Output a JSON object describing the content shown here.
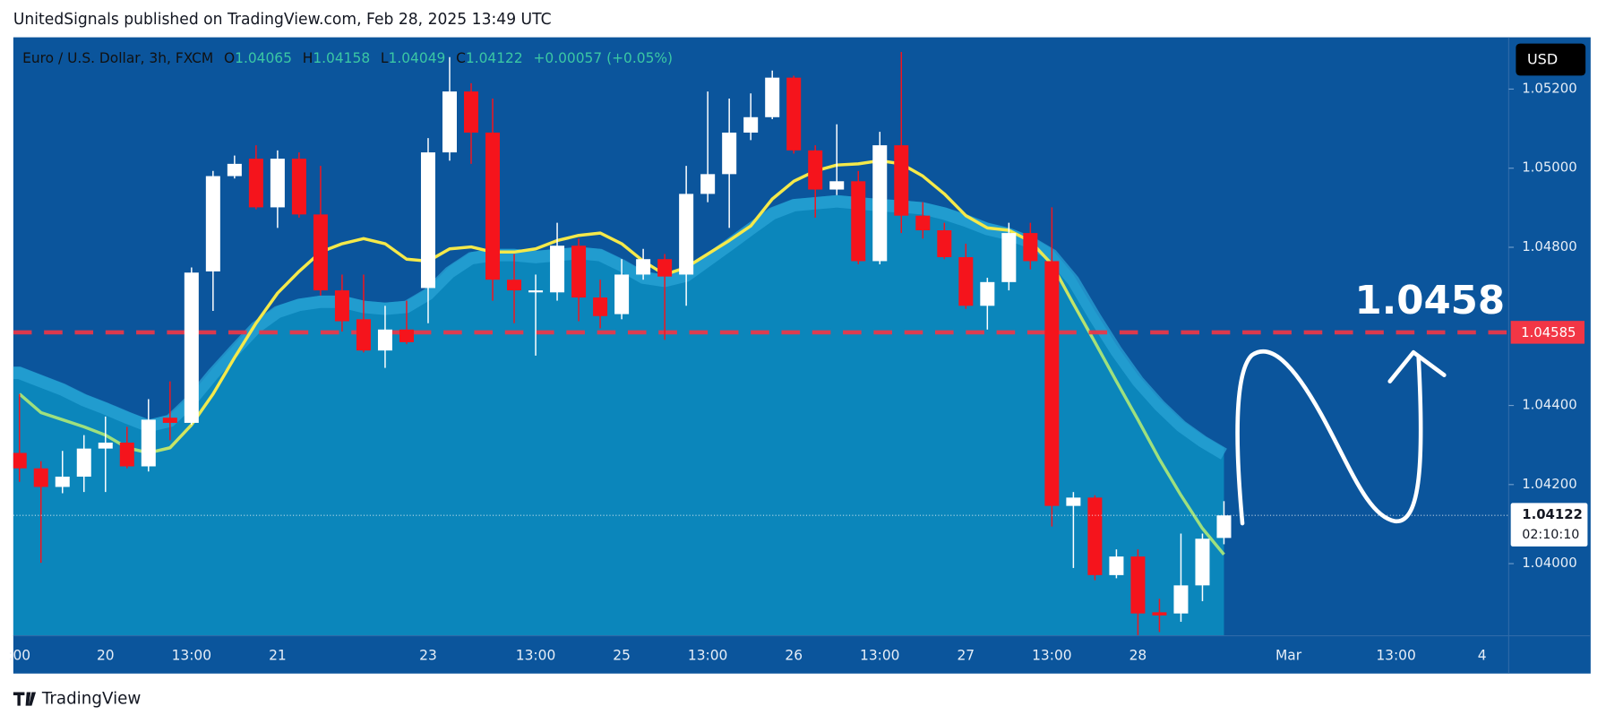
{
  "header": {
    "publisher": "UnitedSignals published on TradingView.com, Feb 28, 2025 13:49 UTC"
  },
  "chart_data": {
    "type": "candlestick",
    "title": "Euro / U.S. Dollar, 3h, FXCM",
    "legend_labels": {
      "open": "O",
      "high": "H",
      "low": "L",
      "close": "C"
    },
    "change": "+0.00057 (+0.05%)",
    "currency": "USD",
    "categories": [
      ":00",
      null,
      null,
      null,
      "20",
      null,
      null,
      null,
      "13:00",
      null,
      null,
      null,
      "21",
      null,
      null,
      null,
      null,
      null,
      null,
      "23",
      null,
      null,
      null,
      null,
      "13:00",
      null,
      null,
      null,
      "25",
      null,
      null,
      null,
      "13:00",
      null,
      null,
      null,
      "26",
      null,
      null,
      null,
      "13:00",
      null,
      null,
      null,
      "27",
      null,
      null,
      null,
      "13:00",
      null,
      null,
      null,
      "28",
      null,
      null,
      null,
      null,
      null,
      null,
      "Mar",
      null,
      null,
      null,
      null,
      "13:00",
      null,
      null,
      null,
      "4"
    ],
    "open": [
      1.0428,
      1.04241,
      1.04194,
      1.0422,
      1.04291,
      1.04306,
      1.04246,
      1.04369,
      1.04356,
      1.04739,
      1.0498,
      1.05024,
      1.04901,
      1.05024,
      1.04883,
      1.04691,
      1.04618,
      1.04539,
      1.04592,
      1.04697,
      1.0504,
      1.05194,
      1.0509,
      1.04718,
      1.04686,
      1.04686,
      1.04804,
      1.04673,
      1.04631,
      1.04731,
      1.0477,
      1.04731,
      1.04935,
      1.04985,
      1.0509,
      1.05129,
      1.05229,
      1.05045,
      1.04946,
      1.04967,
      1.04765,
      1.05058,
      1.0488,
      1.04843,
      1.04775,
      1.04652,
      1.04712,
      1.04836,
      1.04765,
      1.04146,
      1.04167,
      1.03971,
      1.04018,
      1.03877,
      1.03874,
      1.03945,
      1.04065,
      null,
      null,
      null,
      null,
      null,
      null,
      null,
      null,
      null,
      null,
      null,
      null
    ],
    "high": [
      1.04429,
      1.04259,
      1.04285,
      1.04325,
      1.04372,
      1.04346,
      1.04416,
      1.04461,
      1.04749,
      1.04993,
      1.05032,
      1.05058,
      1.05045,
      1.0504,
      1.05006,
      1.04731,
      1.04731,
      1.04652,
      1.04665,
      1.05076,
      1.05281,
      1.05215,
      1.05176,
      1.04783,
      1.04731,
      1.04862,
      1.04822,
      1.04718,
      1.0477,
      1.04796,
      1.04783,
      1.05006,
      1.05194,
      1.05176,
      1.05189,
      1.05247,
      1.05234,
      1.05058,
      1.05111,
      1.04993,
      1.05092,
      1.05294,
      1.04914,
      1.04862,
      1.04809,
      1.04723,
      1.04862,
      1.04862,
      1.04901,
      1.04181,
      1.04173,
      1.04036,
      1.04036,
      1.03911,
      1.04076,
      1.04076,
      1.04158,
      null,
      null,
      null,
      null,
      null,
      null,
      null,
      null,
      null,
      null,
      null,
      null
    ],
    "low": [
      1.04207,
      1.04002,
      1.04178,
      1.04181,
      1.04181,
      1.04241,
      1.04233,
      1.04312,
      1.04351,
      1.04639,
      1.04974,
      1.04896,
      1.04849,
      1.04875,
      1.04678,
      1.04587,
      1.04534,
      1.04495,
      1.04555,
      1.04608,
      1.05019,
      1.05011,
      1.04665,
      1.04608,
      1.04526,
      1.04665,
      1.04613,
      1.04595,
      1.04618,
      1.04718,
      1.04566,
      1.04652,
      1.04914,
      1.04849,
      1.05071,
      1.05124,
      1.05037,
      1.04875,
      1.04932,
      1.04757,
      1.04757,
      1.04836,
      1.04822,
      1.0477,
      1.04644,
      1.04592,
      1.04691,
      1.04744,
      1.04094,
      1.03989,
      1.03958,
      1.03963,
      1.03819,
      1.03827,
      1.03853,
      1.03905,
      1.04049,
      null,
      null,
      null,
      null,
      null,
      null,
      null,
      null,
      null,
      null,
      null,
      null
    ],
    "close": [
      1.04241,
      1.04194,
      1.0422,
      1.04291,
      1.04306,
      1.04246,
      1.04364,
      1.04356,
      1.04736,
      1.0498,
      1.05011,
      1.04901,
      1.05024,
      1.04883,
      1.04691,
      1.04613,
      1.04539,
      1.04592,
      1.0456,
      1.0504,
      1.05194,
      1.0509,
      1.04718,
      1.04691,
      1.04691,
      1.04804,
      1.04673,
      1.04626,
      1.04731,
      1.0477,
      1.04726,
      1.04935,
      1.04985,
      1.0509,
      1.05129,
      1.05229,
      1.05045,
      1.04946,
      1.04967,
      1.04765,
      1.05058,
      1.0488,
      1.04843,
      1.04775,
      1.04652,
      1.04712,
      1.04836,
      1.04765,
      1.04146,
      1.04167,
      1.03971,
      1.04018,
      1.03874,
      1.03869,
      1.03945,
      1.04063,
      1.04122,
      null,
      null,
      null,
      null,
      null,
      null,
      null,
      null,
      null,
      null,
      null,
      null
    ],
    "up_color": "#ffffff",
    "down_color": "#f5141c",
    "overlays": [
      {
        "type": "area",
        "color": "#0b86bb",
        "band_color": "#2aa3d6",
        "values": [
          1.04498,
          1.04477,
          1.04456,
          1.04429,
          1.04408,
          1.04385,
          1.04364,
          1.04377,
          1.04429,
          1.04495,
          1.04555,
          1.04613,
          1.04652,
          1.0467,
          1.04678,
          1.04678,
          1.04665,
          1.0466,
          1.04665,
          1.04697,
          1.04752,
          1.04788,
          1.04796,
          1.04796,
          1.04791,
          1.04796,
          1.04801,
          1.04796,
          1.0477,
          1.04739,
          1.04731,
          1.04744,
          1.04783,
          1.04822,
          1.04862,
          1.04901,
          1.04922,
          1.04927,
          1.04932,
          1.04927,
          1.04922,
          1.04919,
          1.04914,
          1.04901,
          1.04883,
          1.04862,
          1.04849,
          1.04828,
          1.04796,
          1.04731,
          1.04639,
          1.04553,
          1.04477,
          1.04416,
          1.04364,
          1.04325,
          1.04293,
          null,
          null,
          null,
          null,
          null,
          null,
          null,
          null,
          null,
          null,
          null,
          null
        ]
      },
      {
        "type": "line",
        "color": "#f5e94a",
        "color2": "#9ee07e",
        "values": [
          1.04429,
          1.04382,
          1.04364,
          1.04346,
          1.04325,
          1.04293,
          1.0428,
          1.04293,
          1.04351,
          1.04429,
          1.04521,
          1.04608,
          1.04684,
          1.04739,
          1.04788,
          1.04809,
          1.04822,
          1.04809,
          1.0477,
          1.04765,
          1.04796,
          1.04801,
          1.04788,
          1.04788,
          1.04796,
          1.04817,
          1.0483,
          1.04836,
          1.04809,
          1.04765,
          1.04731,
          1.04749,
          1.04783,
          1.04817,
          1.04854,
          1.04922,
          1.04967,
          1.04993,
          1.05008,
          1.05011,
          1.05019,
          1.05011,
          1.0498,
          1.04935,
          1.0488,
          1.04849,
          1.04843,
          1.04815,
          1.04757,
          1.04657,
          1.0456,
          1.04461,
          1.04364,
          1.04264,
          1.04173,
          1.04089,
          1.04023,
          null,
          null,
          null,
          null,
          null,
          null,
          null,
          null,
          null,
          null,
          null,
          null
        ]
      }
    ],
    "ylim": [
      1.03819,
      1.05331
    ],
    "yticks": [
      {
        "value": 1.04,
        "label": "1.04000"
      },
      {
        "value": 1.042,
        "label": "1.04200"
      },
      {
        "value": 1.044,
        "label": "1.04400"
      },
      {
        "value": 1.048,
        "label": "1.04800"
      },
      {
        "value": 1.05,
        "label": "1.05000"
      },
      {
        "value": 1.052,
        "label": "1.05200"
      }
    ],
    "levels": [
      {
        "value": 1.04585,
        "color": "#f23645"
      }
    ],
    "countdown": "02:10:10",
    "annotation": "1.0458"
  },
  "footer": {
    "brand": "TradingView"
  }
}
